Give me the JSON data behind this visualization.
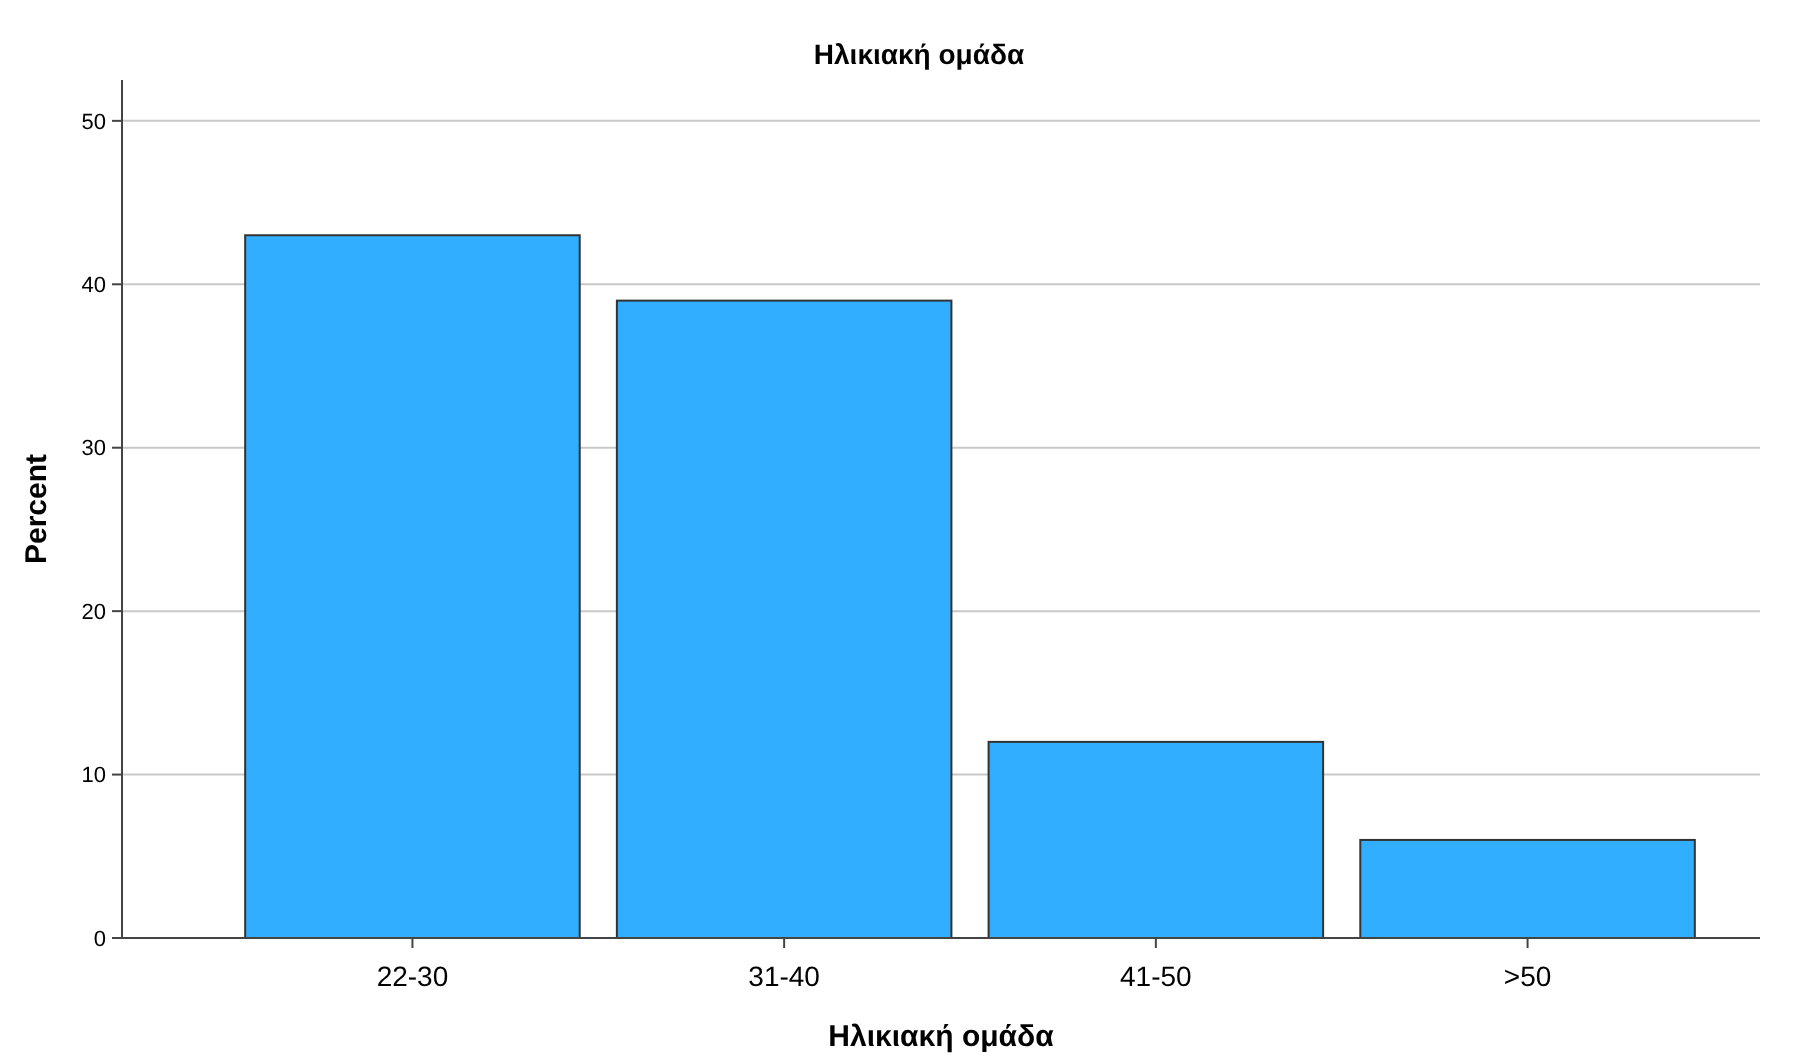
{
  "chart_data": {
    "type": "bar",
    "title": "Ηλικιακή ομάδα",
    "xlabel": "Ηλικιακή ομάδα",
    "ylabel": "Percent",
    "categories": [
      "22-30",
      "31-40",
      "41-50",
      ">50"
    ],
    "values": [
      43,
      39,
      12,
      6
    ],
    "color": "#31aeff",
    "ylim": [
      0,
      52.5
    ],
    "yticks": [
      0,
      10,
      20,
      30,
      40,
      50
    ],
    "grid": "y"
  }
}
